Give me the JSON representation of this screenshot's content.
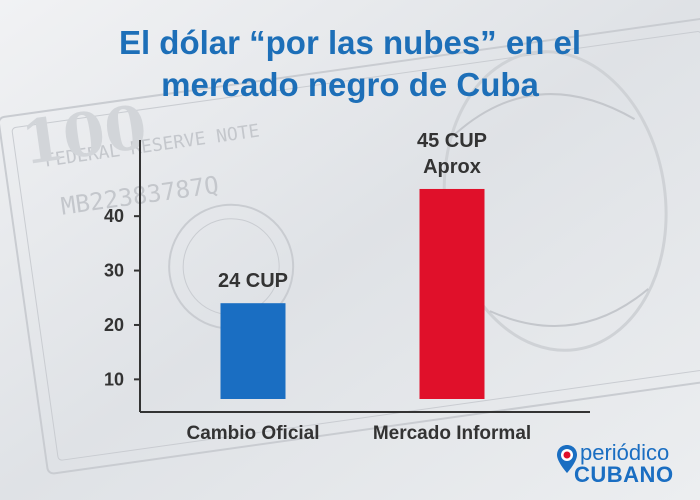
{
  "title_lines": [
    "El dólar “por las nubes” en el",
    "mercado negro de Cuba"
  ],
  "colors": {
    "title": "#1d6fb8",
    "bar_oficial": "#1a6ec2",
    "bar_informal": "#e0102a",
    "axis": "#333333",
    "text": "#333333"
  },
  "chart_data": {
    "type": "bar",
    "title": "El dólar “por las nubes” en el mercado negro de Cuba",
    "categories": [
      "Cambio Oficial",
      "Mercado Informal"
    ],
    "values": [
      24,
      45
    ],
    "data_labels": [
      [
        "24 CUP"
      ],
      [
        "45 CUP",
        "Aprox"
      ]
    ],
    "yticks": [
      10,
      20,
      30,
      40
    ],
    "ylim": [
      4,
      54
    ],
    "xlabel": "",
    "ylabel": "",
    "grid": false
  },
  "logo": {
    "line1": "periódico",
    "line2": "CUBANO"
  }
}
